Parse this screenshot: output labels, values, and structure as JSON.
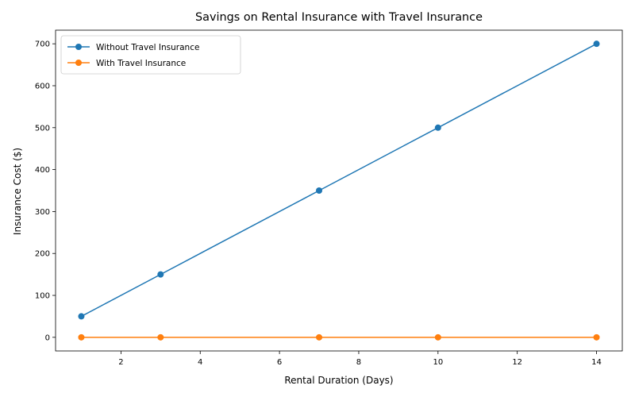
{
  "chart_data": {
    "type": "line",
    "title": "Savings on Rental Insurance with Travel Insurance",
    "xlabel": "Rental Duration (Days)",
    "ylabel": "Insurance Cost ($)",
    "x": [
      1,
      3,
      7,
      10,
      14
    ],
    "xlim": [
      0.35,
      14.65
    ],
    "ylim": [
      -32.5,
      732.5
    ],
    "xticks": [
      2,
      4,
      6,
      8,
      10,
      12,
      14
    ],
    "yticks": [
      0,
      100,
      200,
      300,
      400,
      500,
      600,
      700
    ],
    "grid": false,
    "legend_position": "top-left",
    "series": [
      {
        "name": "Without Travel Insurance",
        "values": [
          50,
          150,
          350,
          500,
          700
        ],
        "color": "#1f77b4"
      },
      {
        "name": "With Travel Insurance",
        "values": [
          0,
          0,
          0,
          0,
          0
        ],
        "color": "#ff7f0e"
      }
    ]
  }
}
